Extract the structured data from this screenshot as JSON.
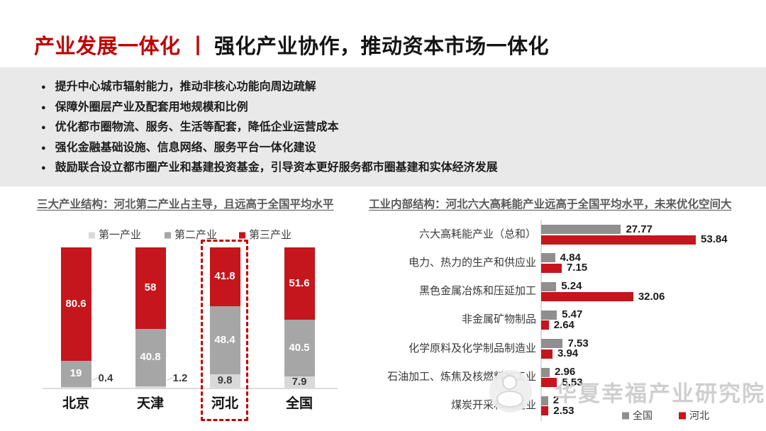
{
  "header": {
    "title_red": "产业发展一体化",
    "divider": "丨",
    "title_black": "强化产业协作，推动资本市场一体化"
  },
  "bullets": {
    "glyph": "●",
    "items": [
      "提升中心城市辐射能力，推动非核心功能向周边疏解",
      "保障外圈层产业及配套用地规模和比例",
      "优化都市圈物流、服务、生活等配套，降低企业运营成本",
      "强化金融基础设施、信息网络、服务平台一体化建设",
      "鼓励联合设立都市圈产业和基建投资基金，引导资本更好服务都市圈基建和实体经济发展"
    ]
  },
  "colors": {
    "accent_red": "#c00000",
    "bar_red": "#c4161c",
    "bar_gray_mid": "#a6a6a6",
    "bar_gray_dark": "#8f8f8f",
    "bar_gray_light": "#d9d9d9",
    "panel_gray": "#e9e9e9",
    "chart_title_gray": "#595959",
    "axis_gray": "#dcdcdc",
    "watermark_gray": "#c7c7c7"
  },
  "watermark": {
    "text": "华夏幸福产业研究院"
  },
  "chart_data": [
    {
      "type": "bar",
      "variant": "stacked-column-100pct",
      "title": "三大产业结构：河北第二产业占主导，且远高于全国平均水平",
      "categories": [
        "北京",
        "天津",
        "河北",
        "全国"
      ],
      "series": [
        {
          "name": "第一产业",
          "color": "#d9d9d9",
          "values": [
            0.4,
            1.2,
            9.8,
            7.9
          ],
          "labels": [
            "0.4",
            "1.2",
            "9.8",
            "7.9"
          ]
        },
        {
          "name": "第二产业",
          "color": "#a6a6a6",
          "values": [
            19,
            40.8,
            48.4,
            40.5
          ],
          "labels": [
            "19",
            "40.8",
            "48.4",
            "40.5"
          ]
        },
        {
          "name": "第三产业",
          "color": "#c4161c",
          "values": [
            80.6,
            58,
            41.8,
            51.6
          ],
          "labels": [
            "80.6",
            "58",
            "41.8",
            "51.6"
          ]
        }
      ],
      "ylim": [
        0,
        100
      ],
      "grid": false,
      "legend_position": "top",
      "highlighted_category": "河北"
    },
    {
      "type": "bar",
      "variant": "grouped-horizontal",
      "title": "工业内部结构：河北六大高耗能产业远高于全国平均水平，未来优化空间大",
      "categories": [
        "六大高耗能产业（总和）",
        "电力、热力的生产和供应业",
        "黑色金属冶炼和压延加工",
        "非金属矿物制品",
        "化学原料及化学制品制造业",
        "石油加工、炼焦及核燃料加工业",
        "煤炭开采和洗选业"
      ],
      "series": [
        {
          "name": "全国",
          "color": "#8f8f8f",
          "values": [
            27.77,
            4.84,
            5.24,
            5.47,
            7.53,
            2.96,
            2.4
          ],
          "labels": [
            "27.77",
            "4.84",
            "5.24",
            "5.47",
            "7.53",
            "2.96",
            "2"
          ]
        },
        {
          "name": "河北",
          "color": "#c4161c",
          "values": [
            53.84,
            7.15,
            32.06,
            2.64,
            3.94,
            5.53,
            2.53
          ],
          "labels": [
            "53.84",
            "7.15",
            "32.06",
            "2.64",
            "3.94",
            "5.53",
            "2.53"
          ]
        }
      ],
      "xlim": [
        0,
        60
      ],
      "grid": false,
      "legend_position": "bottom"
    }
  ]
}
